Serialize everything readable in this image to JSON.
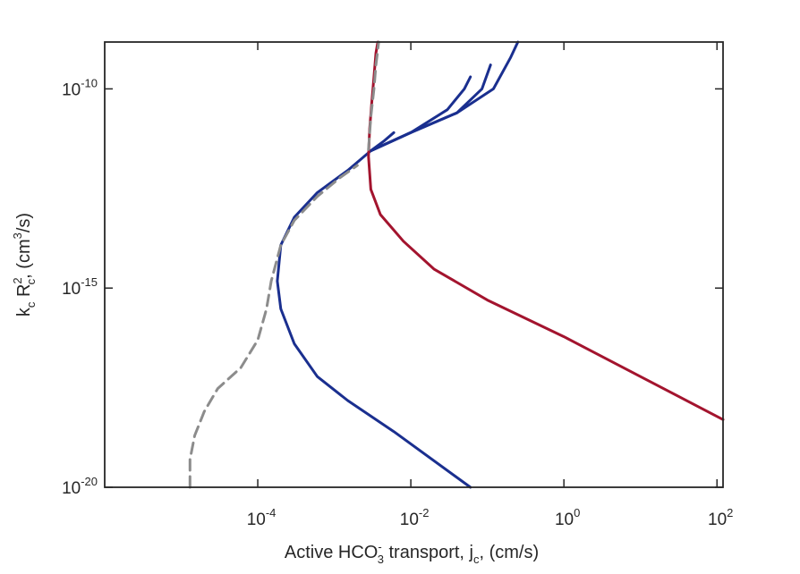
{
  "chart_data": {
    "type": "line",
    "xscale": "log",
    "yscale": "log",
    "xlim": [
      1e-06,
      120
    ],
    "ylim": [
      1e-20,
      1.5e-09
    ],
    "x_tick_labels": [
      {
        "base": "10",
        "exp": "-4",
        "value": 0.0001
      },
      {
        "base": "10",
        "exp": "-2",
        "value": 0.01
      },
      {
        "base": "10",
        "exp": "0",
        "value": 1
      },
      {
        "base": "10",
        "exp": "2",
        "value": 100
      }
    ],
    "y_tick_labels": [
      {
        "base": "10",
        "exp": "-10",
        "value": 1e-10
      },
      {
        "base": "10",
        "exp": "-15",
        "value": 1e-15
      },
      {
        "base": "10",
        "exp": "-20",
        "value": 1e-20
      }
    ],
    "xlabel": {
      "part1": "Active HCO",
      "sub1": "3",
      "sup1": "-",
      "part2": " transport, j",
      "sub2": "c",
      "part3": ", (cm/s)"
    },
    "ylabel": {
      "part1": "k",
      "sub1": "c",
      "part2": " R",
      "sub2": "c",
      "sup2": "2",
      "part3": ", (cm",
      "sup3": "3",
      "part4": "/s)"
    },
    "grid": false,
    "series": [
      {
        "color": "#1a2f8f",
        "style": "solid",
        "points": [
          [
            0.06,
            1e-20
          ],
          [
            0.006,
            2.5e-19
          ],
          [
            0.0015,
            1.5e-18
          ],
          [
            0.0006,
            6e-18
          ],
          [
            0.0003,
            4e-17
          ],
          [
            0.0002,
            3e-16
          ],
          [
            0.00018,
            1.5e-15
          ],
          [
            0.0002,
            1.2e-14
          ],
          [
            0.0003,
            6e-14
          ],
          [
            0.0006,
            2.5e-13
          ],
          [
            0.0015,
            9e-13
          ],
          [
            0.003,
            2.8e-12
          ],
          [
            0.01,
            8e-12
          ],
          [
            0.04,
            2.5e-11
          ],
          [
            0.12,
            1e-10
          ],
          [
            0.2,
            6e-10
          ],
          [
            0.25,
            1.5e-09
          ]
        ]
      },
      {
        "color": "#1a2f8f",
        "style": "solid",
        "points": [
          [
            0.003,
            2.8e-12
          ],
          [
            0.01,
            8e-12
          ],
          [
            0.04,
            2.5e-11
          ],
          [
            0.085,
            1e-10
          ],
          [
            0.11,
            4e-10
          ]
        ]
      },
      {
        "color": "#1a2f8f",
        "style": "solid",
        "points": [
          [
            0.003,
            2.8e-12
          ],
          [
            0.01,
            8e-12
          ],
          [
            0.03,
            3e-11
          ],
          [
            0.05,
            1e-10
          ],
          [
            0.06,
            2e-10
          ]
        ]
      },
      {
        "color": "#1a2f8f",
        "style": "solid",
        "points": [
          [
            0.003,
            2.8e-12
          ],
          [
            0.0045,
            5e-12
          ],
          [
            0.006,
            8e-12
          ]
        ]
      },
      {
        "color": "#a3142e",
        "style": "solid",
        "points": [
          [
            120,
            5e-19
          ],
          [
            10,
            6e-18
          ],
          [
            1,
            6e-17
          ],
          [
            0.1,
            5e-16
          ],
          [
            0.02,
            3e-15
          ],
          [
            0.008,
            1.5e-14
          ],
          [
            0.004,
            7e-14
          ],
          [
            0.003,
            3e-13
          ],
          [
            0.0028,
            2e-12
          ],
          [
            0.0029,
            1e-11
          ],
          [
            0.0031,
            5e-11
          ],
          [
            0.0033,
            2e-10
          ],
          [
            0.0035,
            8e-10
          ],
          [
            0.0037,
            1.5e-09
          ]
        ]
      },
      {
        "color": "#8c8c8c",
        "style": "dashed",
        "points": [
          [
            1.3e-05,
            1e-20
          ],
          [
            1.3e-05,
            5e-20
          ],
          [
            1.5e-05,
            2e-19
          ],
          [
            2e-05,
            8e-19
          ],
          [
            3e-05,
            3e-18
          ],
          [
            6e-05,
            1e-17
          ],
          [
            0.0001,
            5e-17
          ],
          [
            0.00013,
            3e-16
          ],
          [
            0.00015,
            1.5e-15
          ],
          [
            0.0002,
            1.2e-14
          ],
          [
            0.0003,
            5e-14
          ],
          [
            0.0006,
            2e-13
          ],
          [
            0.0012,
            6e-13
          ],
          [
            0.002,
            1.2e-12
          ]
        ]
      },
      {
        "color": "#8c8c8c",
        "style": "dashed",
        "points": [
          [
            0.0028,
            3e-12
          ],
          [
            0.003,
            2e-11
          ],
          [
            0.0033,
            1e-10
          ],
          [
            0.0035,
            4e-10
          ],
          [
            0.0038,
            1.5e-09
          ]
        ]
      }
    ]
  }
}
